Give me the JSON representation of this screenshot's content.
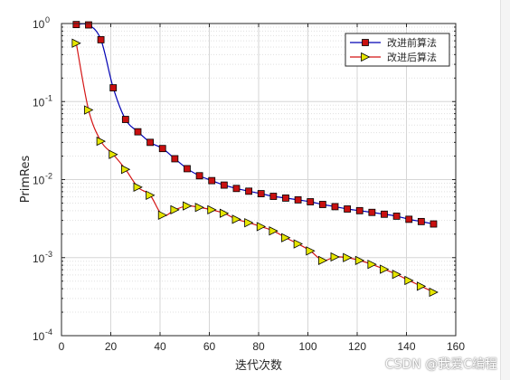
{
  "watermark": "CSDN @我爱C编程",
  "chart_data": {
    "type": "line",
    "title": "",
    "xlabel": "迭代次数",
    "ylabel": "PrimRes",
    "xlim": [
      0,
      160
    ],
    "ylim": [
      0.0001,
      1
    ],
    "yscale": "log",
    "grid": true,
    "minor_grid": true,
    "legend_position": "top-right",
    "x_ticks": [
      "0",
      "20",
      "40",
      "60",
      "80",
      "100",
      "120",
      "140",
      "160"
    ],
    "y_ticks": [
      {
        "base": "10",
        "exp": "0"
      },
      {
        "base": "10",
        "exp": "-1"
      },
      {
        "base": "10",
        "exp": "-2"
      },
      {
        "base": "10",
        "exp": "-3"
      },
      {
        "base": "10",
        "exp": "-4"
      }
    ],
    "series": [
      {
        "name": "改进前算法",
        "color": "#0000b4",
        "marker": "square",
        "marker_fill": "#c81010",
        "x": [
          6,
          11,
          16,
          21,
          26,
          31,
          36,
          41,
          46,
          51,
          56,
          61,
          66,
          71,
          76,
          81,
          86,
          91,
          96,
          101,
          106,
          111,
          116,
          121,
          126,
          131,
          136,
          141,
          146,
          151
        ],
        "y": [
          0.97,
          0.96,
          0.62,
          0.15,
          0.059,
          0.041,
          0.03,
          0.025,
          0.0185,
          0.0138,
          0.0112,
          0.0097,
          0.0085,
          0.0077,
          0.0071,
          0.0066,
          0.0061,
          0.0058,
          0.0055,
          0.0052,
          0.0048,
          0.0045,
          0.0042,
          0.004,
          0.0038,
          0.0036,
          0.0034,
          0.0031,
          0.0029,
          0.0027
        ]
      },
      {
        "name": "改进后算法",
        "color": "#d41414",
        "marker": "triangle-right",
        "marker_fill": "#e6e600",
        "x": [
          6,
          11,
          16,
          21,
          26,
          31,
          36,
          41,
          46,
          51,
          56,
          61,
          66,
          71,
          76,
          81,
          86,
          91,
          96,
          101,
          106,
          111,
          116,
          121,
          126,
          131,
          136,
          141,
          146,
          151
        ],
        "y": [
          0.56,
          0.078,
          0.031,
          0.021,
          0.0135,
          0.008,
          0.0063,
          0.0035,
          0.0041,
          0.0046,
          0.0044,
          0.0041,
          0.0037,
          0.0031,
          0.0028,
          0.0025,
          0.0022,
          0.0018,
          0.0015,
          0.00122,
          0.00092,
          0.00102,
          0.001,
          0.00092,
          0.00082,
          0.00071,
          0.00061,
          0.00051,
          0.00043,
          0.00036
        ]
      }
    ]
  }
}
